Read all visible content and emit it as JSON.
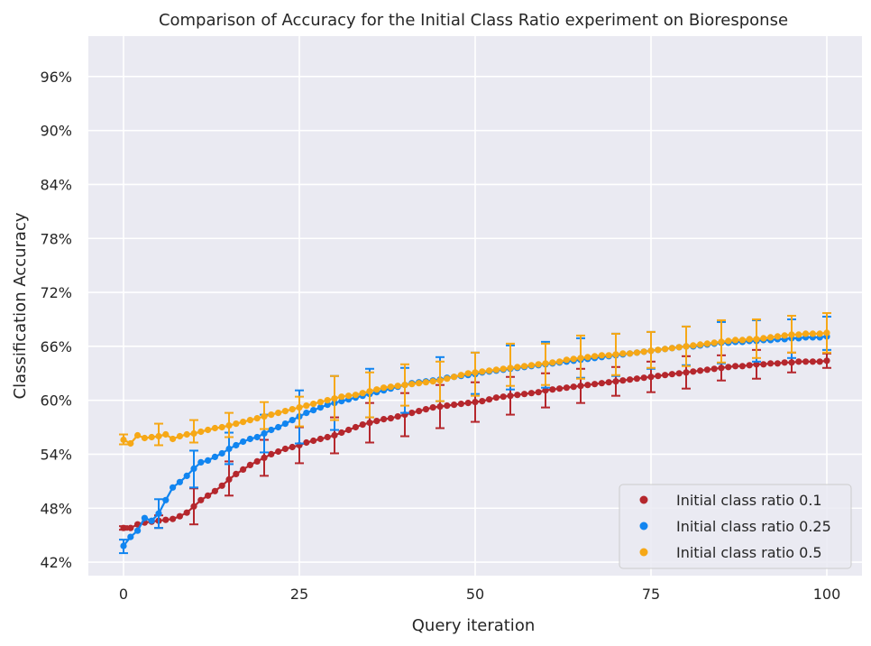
{
  "chart_data": {
    "type": "scatter",
    "title": "Comparison of Accuracy for the Initial Class Ratio experiment on Bioresponse",
    "xlabel": "Query iteration",
    "ylabel": "Classification Accuracy",
    "xlim": [
      -5,
      105
    ],
    "ylim": [
      40.5,
      100.5
    ],
    "xticks": [
      0,
      25,
      50,
      75,
      100
    ],
    "xtick_labels": [
      "0",
      "25",
      "50",
      "75",
      "100"
    ],
    "yticks": [
      42,
      48,
      54,
      60,
      66,
      72,
      78,
      84,
      90,
      96
    ],
    "ytick_labels": [
      "42%",
      "48%",
      "54%",
      "60%",
      "66%",
      "72%",
      "78%",
      "84%",
      "90%",
      "96%"
    ],
    "grid": true,
    "legend_position": "bottom-right",
    "colors": {
      "background": "#eaeaf2",
      "grid": "#ffffff",
      "text": "#262626"
    },
    "series": [
      {
        "name": "Initial class ratio 0.1",
        "color": "#b5272d",
        "x": [
          0,
          1,
          2,
          3,
          4,
          5,
          6,
          7,
          8,
          9,
          10,
          11,
          12,
          13,
          14,
          15,
          16,
          17,
          18,
          19,
          20,
          21,
          22,
          23,
          24,
          25,
          26,
          27,
          28,
          29,
          30,
          31,
          32,
          33,
          34,
          35,
          36,
          37,
          38,
          39,
          40,
          41,
          42,
          43,
          44,
          45,
          46,
          47,
          48,
          49,
          50,
          51,
          52,
          53,
          54,
          55,
          56,
          57,
          58,
          59,
          60,
          61,
          62,
          63,
          64,
          65,
          66,
          67,
          68,
          69,
          70,
          71,
          72,
          73,
          74,
          75,
          76,
          77,
          78,
          79,
          80,
          81,
          82,
          83,
          84,
          85,
          86,
          87,
          88,
          89,
          90,
          91,
          92,
          93,
          94,
          95,
          96,
          97,
          98,
          99,
          100
        ],
        "y": [
          45.8,
          45.8,
          46.2,
          46.4,
          46.5,
          46.6,
          46.7,
          46.8,
          47.1,
          47.5,
          48.2,
          48.9,
          49.4,
          49.9,
          50.5,
          51.2,
          51.8,
          52.3,
          52.8,
          53.2,
          53.6,
          54.0,
          54.3,
          54.6,
          54.8,
          55.0,
          55.3,
          55.5,
          55.7,
          55.9,
          56.1,
          56.4,
          56.7,
          57.0,
          57.3,
          57.5,
          57.7,
          57.9,
          58.0,
          58.2,
          58.4,
          58.6,
          58.8,
          59.0,
          59.2,
          59.3,
          59.4,
          59.5,
          59.6,
          59.7,
          59.8,
          59.9,
          60.1,
          60.3,
          60.4,
          60.5,
          60.6,
          60.7,
          60.8,
          60.9,
          61.1,
          61.2,
          61.3,
          61.4,
          61.5,
          61.6,
          61.7,
          61.8,
          61.9,
          62.0,
          62.1,
          62.2,
          62.3,
          62.4,
          62.5,
          62.6,
          62.7,
          62.8,
          62.9,
          63.0,
          63.1,
          63.2,
          63.3,
          63.4,
          63.5,
          63.6,
          63.7,
          63.8,
          63.8,
          63.9,
          64.0,
          64.0,
          64.1,
          64.1,
          64.2,
          64.2,
          64.3,
          64.3,
          64.3,
          64.3,
          64.4
        ],
        "error_x": [
          0,
          5,
          10,
          15,
          20,
          25,
          30,
          35,
          40,
          45,
          50,
          55,
          60,
          65,
          70,
          75,
          80,
          85,
          90,
          95,
          100
        ],
        "error_y": [
          45.8,
          46.6,
          48.2,
          51.2,
          53.6,
          55.0,
          56.1,
          57.5,
          58.4,
          59.3,
          59.8,
          60.5,
          61.1,
          61.6,
          62.1,
          62.6,
          63.1,
          63.6,
          64.0,
          64.2,
          64.4
        ],
        "error_lo": [
          45.6,
          45.8,
          46.2,
          49.4,
          51.6,
          53.0,
          54.1,
          55.3,
          56.0,
          56.9,
          57.6,
          58.4,
          59.2,
          59.7,
          60.5,
          60.9,
          61.3,
          62.2,
          62.4,
          63.1,
          63.6
        ],
        "error_hi": [
          46.0,
          47.2,
          50.2,
          53.2,
          55.6,
          57.0,
          58.1,
          59.7,
          60.8,
          61.7,
          62.0,
          62.6,
          63.0,
          63.5,
          63.7,
          64.3,
          64.9,
          65.0,
          65.6,
          65.3,
          65.2
        ]
      },
      {
        "name": "Initial class ratio 0.25",
        "color": "#1185f0",
        "x": [
          0,
          1,
          2,
          3,
          4,
          5,
          6,
          7,
          8,
          9,
          10,
          11,
          12,
          13,
          14,
          15,
          16,
          17,
          18,
          19,
          20,
          21,
          22,
          23,
          24,
          25,
          26,
          27,
          28,
          29,
          30,
          31,
          32,
          33,
          34,
          35,
          36,
          37,
          38,
          39,
          40,
          41,
          42,
          43,
          44,
          45,
          46,
          47,
          48,
          49,
          50,
          51,
          52,
          53,
          54,
          55,
          56,
          57,
          58,
          59,
          60,
          61,
          62,
          63,
          64,
          65,
          66,
          67,
          68,
          69,
          70,
          71,
          72,
          73,
          74,
          75,
          76,
          77,
          78,
          79,
          80,
          81,
          82,
          83,
          84,
          85,
          86,
          87,
          88,
          89,
          90,
          91,
          92,
          93,
          94,
          95,
          96,
          97,
          98,
          99,
          100
        ],
        "y": [
          43.8,
          44.8,
          45.5,
          46.9,
          46.6,
          47.4,
          48.9,
          50.3,
          50.9,
          51.6,
          52.4,
          53.1,
          53.3,
          53.7,
          54.1,
          54.6,
          55.0,
          55.4,
          55.7,
          55.9,
          56.3,
          56.7,
          57.0,
          57.4,
          57.8,
          58.2,
          58.6,
          58.9,
          59.2,
          59.5,
          59.7,
          59.9,
          60.1,
          60.3,
          60.5,
          60.7,
          60.9,
          61.1,
          61.3,
          61.5,
          61.7,
          61.9,
          62.0,
          62.1,
          62.2,
          62.3,
          62.5,
          62.6,
          62.7,
          62.8,
          62.9,
          63.1,
          63.2,
          63.3,
          63.4,
          63.5,
          63.6,
          63.7,
          63.8,
          63.9,
          64.0,
          64.1,
          64.2,
          64.3,
          64.4,
          64.5,
          64.6,
          64.7,
          64.8,
          64.9,
          65.0,
          65.1,
          65.2,
          65.3,
          65.4,
          65.5,
          65.6,
          65.7,
          65.8,
          65.9,
          66.0,
          66.0,
          66.1,
          66.2,
          66.3,
          66.4,
          66.4,
          66.5,
          66.5,
          66.6,
          66.6,
          66.7,
          66.7,
          66.8,
          66.8,
          66.9,
          66.9,
          67.0,
          67.0,
          67.0,
          67.1
        ],
        "error_x": [
          0,
          5,
          10,
          15,
          20,
          25,
          30,
          35,
          40,
          45,
          50,
          55,
          60,
          65,
          70,
          75,
          80,
          85,
          90,
          95,
          100
        ],
        "error_y": [
          43.8,
          47.4,
          52.4,
          54.6,
          56.3,
          58.2,
          59.7,
          60.7,
          61.7,
          62.3,
          62.9,
          63.5,
          64.0,
          64.5,
          65.0,
          65.5,
          66.0,
          66.4,
          66.6,
          66.9,
          67.1
        ],
        "error_lo": [
          43.0,
          45.8,
          50.3,
          52.9,
          54.2,
          55.2,
          56.7,
          58.1,
          58.6,
          59.9,
          60.7,
          61.2,
          61.4,
          62.5,
          62.7,
          63.5,
          63.9,
          64.1,
          64.3,
          64.7,
          65.6
        ],
        "error_hi": [
          44.5,
          49.0,
          54.4,
          56.4,
          58.4,
          61.1,
          62.7,
          63.5,
          63.6,
          64.8,
          65.3,
          66.1,
          66.5,
          66.9,
          67.4,
          67.6,
          68.2,
          68.7,
          68.9,
          69.0,
          69.3
        ]
      },
      {
        "name": "Initial class ratio 0.5",
        "color": "#f6a817",
        "x": [
          0,
          1,
          2,
          3,
          4,
          5,
          6,
          7,
          8,
          9,
          10,
          11,
          12,
          13,
          14,
          15,
          16,
          17,
          18,
          19,
          20,
          21,
          22,
          23,
          24,
          25,
          26,
          27,
          28,
          29,
          30,
          31,
          32,
          33,
          34,
          35,
          36,
          37,
          38,
          39,
          40,
          41,
          42,
          43,
          44,
          45,
          46,
          47,
          48,
          49,
          50,
          51,
          52,
          53,
          54,
          55,
          56,
          57,
          58,
          59,
          60,
          61,
          62,
          63,
          64,
          65,
          66,
          67,
          68,
          69,
          70,
          71,
          72,
          73,
          74,
          75,
          76,
          77,
          78,
          79,
          80,
          81,
          82,
          83,
          84,
          85,
          86,
          87,
          88,
          89,
          90,
          91,
          92,
          93,
          94,
          95,
          96,
          97,
          98,
          99,
          100
        ],
        "y": [
          55.6,
          55.2,
          56.1,
          55.8,
          55.9,
          56.0,
          56.2,
          55.7,
          56.0,
          56.2,
          56.3,
          56.5,
          56.7,
          56.9,
          57.0,
          57.2,
          57.4,
          57.6,
          57.8,
          58.0,
          58.2,
          58.4,
          58.6,
          58.8,
          59.0,
          59.2,
          59.4,
          59.6,
          59.8,
          60.0,
          60.2,
          60.4,
          60.5,
          60.6,
          60.8,
          61.0,
          61.2,
          61.4,
          61.5,
          61.6,
          61.7,
          61.8,
          61.9,
          62.0,
          62.1,
          62.2,
          62.4,
          62.6,
          62.8,
          63.0,
          63.1,
          63.2,
          63.3,
          63.4,
          63.5,
          63.6,
          63.7,
          63.8,
          63.9,
          64.0,
          64.1,
          64.2,
          64.3,
          64.5,
          64.6,
          64.7,
          64.8,
          64.9,
          65.0,
          65.0,
          65.1,
          65.2,
          65.2,
          65.3,
          65.4,
          65.5,
          65.6,
          65.7,
          65.8,
          65.9,
          66.0,
          66.1,
          66.2,
          66.3,
          66.4,
          66.5,
          66.6,
          66.7,
          66.7,
          66.8,
          66.8,
          66.9,
          67.0,
          67.1,
          67.2,
          67.3,
          67.3,
          67.4,
          67.4,
          67.4,
          67.5
        ],
        "error_x": [
          0,
          5,
          10,
          15,
          20,
          25,
          30,
          35,
          40,
          45,
          50,
          55,
          60,
          65,
          70,
          75,
          80,
          85,
          90,
          95,
          100
        ],
        "error_y": [
          55.6,
          56.0,
          56.3,
          57.2,
          58.2,
          59.2,
          60.2,
          61.0,
          61.7,
          62.2,
          63.1,
          63.6,
          64.1,
          64.7,
          65.1,
          65.5,
          66.0,
          66.5,
          66.8,
          67.3,
          67.5
        ],
        "error_lo": [
          55.1,
          55.0,
          55.3,
          55.9,
          56.8,
          57.1,
          57.8,
          58.1,
          59.4,
          59.9,
          60.5,
          61.6,
          61.7,
          62.4,
          62.8,
          63.6,
          63.8,
          64.2,
          64.7,
          65.3,
          65.3
        ],
        "error_hi": [
          56.2,
          57.4,
          57.8,
          58.6,
          59.8,
          60.4,
          62.7,
          63.1,
          64.0,
          64.3,
          65.3,
          66.3,
          66.3,
          67.2,
          67.4,
          67.6,
          68.2,
          68.9,
          69.0,
          69.4,
          69.7
        ]
      }
    ]
  }
}
